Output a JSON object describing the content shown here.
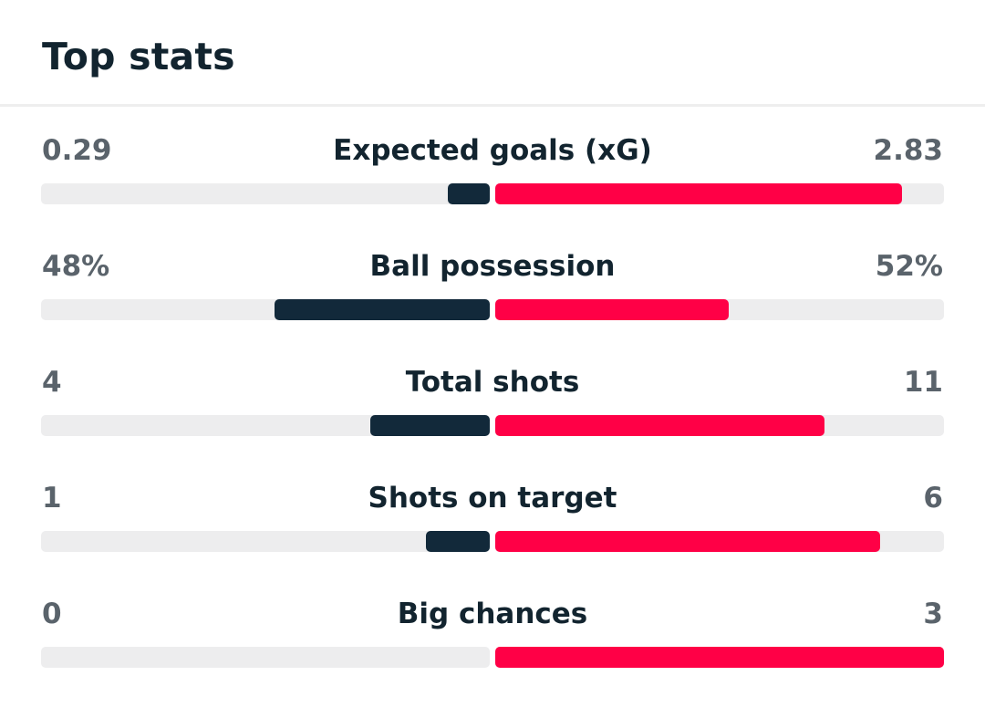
{
  "header": {
    "title": "Top stats"
  },
  "colors": {
    "home": "#12293a",
    "away": "#ff0046",
    "track": "#ededee"
  },
  "stats": [
    {
      "label": "Expected goals (xG)",
      "home": "0.29",
      "away": "2.83",
      "home_fraction": 0.093,
      "away_fraction": 0.907
    },
    {
      "label": "Ball possession",
      "home": "48%",
      "away": "52%",
      "home_fraction": 0.48,
      "away_fraction": 0.52
    },
    {
      "label": "Total shots",
      "home": "4",
      "away": "11",
      "home_fraction": 0.267,
      "away_fraction": 0.733
    },
    {
      "label": "Shots on target",
      "home": "1",
      "away": "6",
      "home_fraction": 0.143,
      "away_fraction": 0.857
    },
    {
      "label": "Big chances",
      "home": "0",
      "away": "3",
      "home_fraction": 0.0,
      "away_fraction": 1.0
    }
  ]
}
